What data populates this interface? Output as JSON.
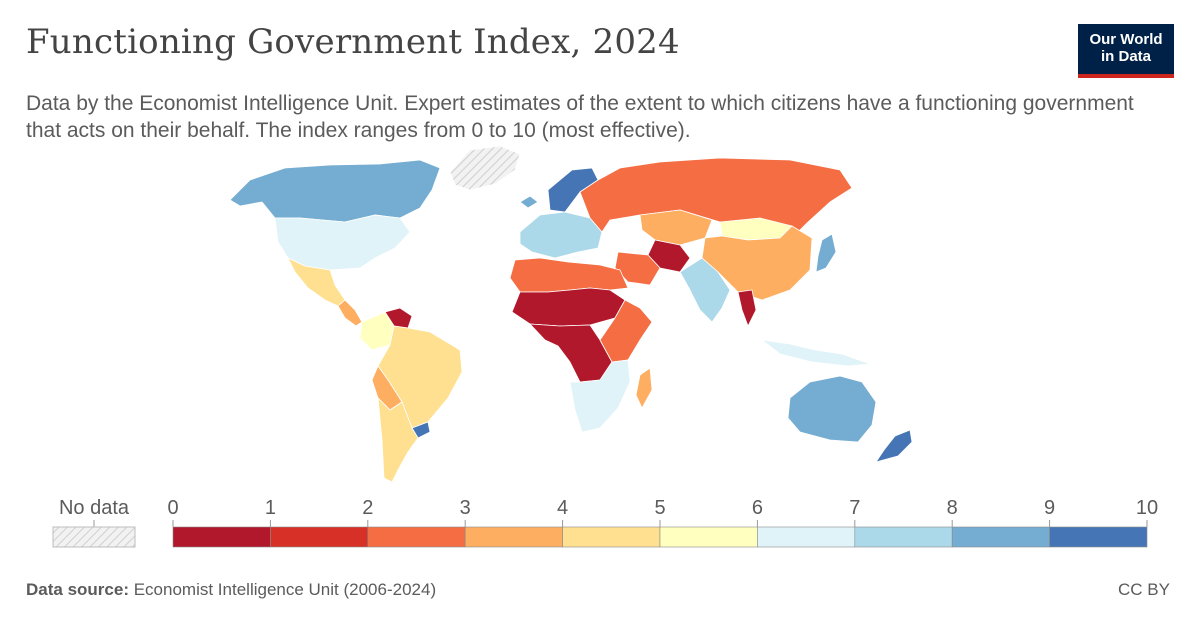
{
  "header": {
    "title": "Functioning Government Index, 2024",
    "subtitle": "Data by the Economist Intelligence Unit. Expert estimates of the extent to which citizens have a functioning government that acts on their behalf. The index ranges from 0 to 10 (most effective).",
    "logo_line1": "Our World",
    "logo_line2": "in Data"
  },
  "legend": {
    "no_data_label": "No data",
    "ticks": [
      "0",
      "1",
      "2",
      "3",
      "4",
      "5",
      "6",
      "7",
      "8",
      "9",
      "10"
    ],
    "colors": [
      "#b2182b",
      "#d73027",
      "#f46d43",
      "#fdae61",
      "#fee090",
      "#ffffbf",
      "#e0f3f8",
      "#abd9e9",
      "#74add1",
      "#4575b4"
    ],
    "no_data_color": "#e0e0e0"
  },
  "regions": [
    {
      "name": "Canada",
      "color": "#74add1"
    },
    {
      "name": "Greenland",
      "color": "#e0e0e0"
    },
    {
      "name": "United States",
      "color": "#e0f3f8"
    },
    {
      "name": "Mexico",
      "color": "#fee090"
    },
    {
      "name": "Central America",
      "color": "#fdae61"
    },
    {
      "name": "Venezuela",
      "color": "#b2182b"
    },
    {
      "name": "Colombia",
      "color": "#ffffbf"
    },
    {
      "name": "Brazil",
      "color": "#fee090"
    },
    {
      "name": "Bolivia",
      "color": "#fdae61"
    },
    {
      "name": "Uruguay",
      "color": "#4575b4"
    },
    {
      "name": "Argentina",
      "color": "#fee090"
    },
    {
      "name": "Iceland",
      "color": "#74add1"
    },
    {
      "name": "Norway",
      "color": "#4575b4"
    },
    {
      "name": "Western Europe",
      "color": "#abd9e9"
    },
    {
      "name": "Russia",
      "color": "#f46d43"
    },
    {
      "name": "Kazakhstan",
      "color": "#fdae61"
    },
    {
      "name": "Mongolia",
      "color": "#ffffbf"
    },
    {
      "name": "China",
      "color": "#fdae61"
    },
    {
      "name": "Japan",
      "color": "#74add1"
    },
    {
      "name": "Afghanistan",
      "color": "#b2182b"
    },
    {
      "name": "Iran",
      "color": "#f46d43"
    },
    {
      "name": "India",
      "color": "#abd9e9"
    },
    {
      "name": "Myanmar",
      "color": "#b2182b"
    },
    {
      "name": "North Africa",
      "color": "#f46d43"
    },
    {
      "name": "Sahel",
      "color": "#b2182b"
    },
    {
      "name": "Central Africa",
      "color": "#b2182b"
    },
    {
      "name": "East Africa",
      "color": "#f46d43"
    },
    {
      "name": "Southern Africa",
      "color": "#e0f3f8"
    },
    {
      "name": "Madagascar",
      "color": "#fdae61"
    },
    {
      "name": "Indonesia",
      "color": "#e0f3f8"
    },
    {
      "name": "Australia",
      "color": "#74add1"
    },
    {
      "name": "New Zealand",
      "color": "#4575b4"
    }
  ],
  "footer": {
    "source_label": "Data source:",
    "source_text": "Economist Intelligence Unit (2006-2024)",
    "license": "CC BY"
  }
}
